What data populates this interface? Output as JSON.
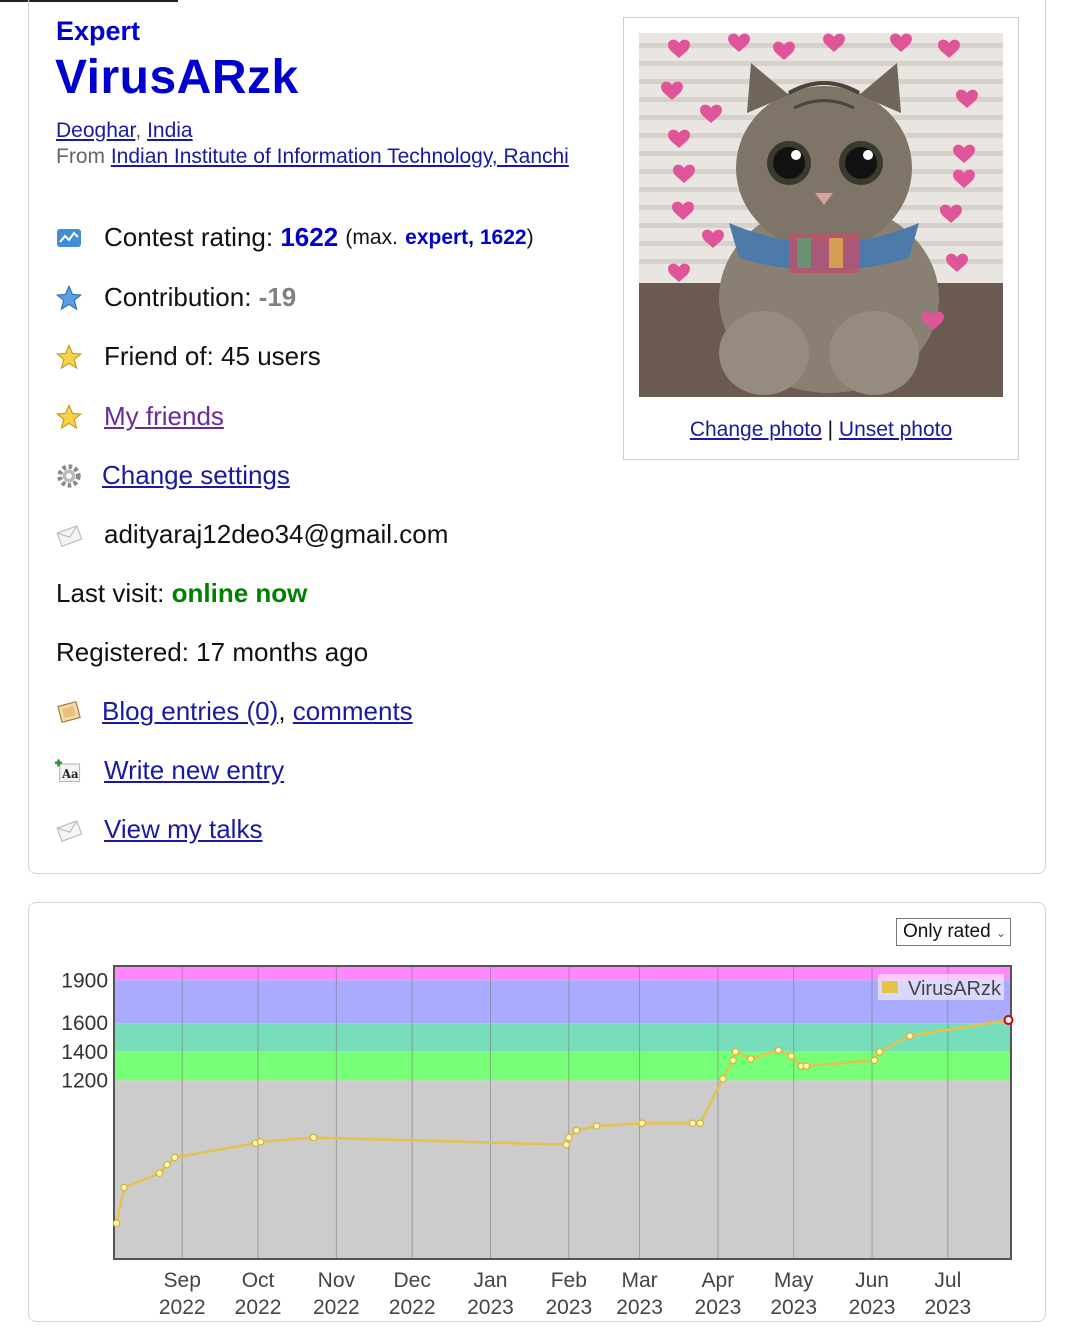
{
  "profile": {
    "rank": "Expert",
    "handle": "VirusARzk",
    "city": "Deoghar",
    "country": "India",
    "from_prefix": "From",
    "organization": "Indian Institute of Information Technology, Ranchi"
  },
  "stats": {
    "contest_rating_label": "Contest rating:",
    "contest_rating_value": "1622",
    "max_open": "(max.",
    "max_rank_value": "expert, 1622",
    "max_close": ")",
    "contribution_label": "Contribution:",
    "contribution_value": "-19",
    "friend_of_label": "Friend of: 45 users",
    "my_friends_link": "My friends",
    "change_settings_link": "Change settings",
    "email": "adityaraj12deo34@gmail.com",
    "last_visit_label": "Last visit:",
    "last_visit_value": "online now",
    "registered_label": "Registered: 17 months ago",
    "blog_entries_link": "Blog entries (0)",
    "comments_link": "comments",
    "write_entry_link": "Write new entry",
    "talks_link": "View my talks"
  },
  "photo": {
    "change_photo": "Change photo",
    "separator": "|",
    "unset_photo": "Unset photo"
  },
  "filter": {
    "selected": "Only rated"
  },
  "chart_data": {
    "type": "line",
    "series": [
      {
        "name": "VirusARzk",
        "color": "#e6c24a",
        "points": [
          [
            "2022-08-06",
            200
          ],
          [
            "2022-08-09",
            450
          ],
          [
            "2022-08-23",
            550
          ],
          [
            "2022-08-26",
            610
          ],
          [
            "2022-08-29",
            660
          ],
          [
            "2022-09-30",
            760
          ],
          [
            "2022-10-02",
            770
          ],
          [
            "2022-10-23",
            800
          ],
          [
            "2023-01-31",
            750
          ],
          [
            "2023-02-01",
            800
          ],
          [
            "2023-02-04",
            850
          ],
          [
            "2023-02-12",
            880
          ],
          [
            "2023-03-02",
            900
          ],
          [
            "2023-03-22",
            900
          ],
          [
            "2023-03-25",
            900
          ],
          [
            "2023-04-03",
            1210
          ],
          [
            "2023-04-07",
            1340
          ],
          [
            "2023-04-08",
            1400
          ],
          [
            "2023-04-14",
            1350
          ],
          [
            "2023-04-25",
            1410
          ],
          [
            "2023-04-30",
            1370
          ],
          [
            "2023-05-04",
            1300
          ],
          [
            "2023-05-06",
            1300
          ],
          [
            "2023-06-02",
            1340
          ],
          [
            "2023-06-04",
            1400
          ],
          [
            "2023-06-16",
            1510
          ],
          [
            "2023-07-25",
            1622
          ]
        ]
      }
    ],
    "x_ticks": [
      {
        "date": "2022-09-01",
        "m": "Sep",
        "y": "2022"
      },
      {
        "date": "2022-10-01",
        "m": "Oct",
        "y": "2022"
      },
      {
        "date": "2022-11-01",
        "m": "Nov",
        "y": "2022"
      },
      {
        "date": "2022-12-01",
        "m": "Dec",
        "y": "2022"
      },
      {
        "date": "2023-01-01",
        "m": "Jan",
        "y": "2023"
      },
      {
        "date": "2023-02-01",
        "m": "Feb",
        "y": "2023"
      },
      {
        "date": "2023-03-01",
        "m": "Mar",
        "y": "2023"
      },
      {
        "date": "2023-04-01",
        "m": "Apr",
        "y": "2023"
      },
      {
        "date": "2023-05-01",
        "m": "May",
        "y": "2023"
      },
      {
        "date": "2023-06-01",
        "m": "Jun",
        "y": "2023"
      },
      {
        "date": "2023-07-01",
        "m": "Jul",
        "y": "2023"
      }
    ],
    "y_ticks": [
      1200,
      1400,
      1600,
      1900
    ],
    "xlim": [
      "2022-08-05",
      "2023-07-26"
    ],
    "ylim": [
      -50,
      2000
    ],
    "bands": [
      {
        "from": 1900,
        "to": 2000,
        "color": "#ff88ff"
      },
      {
        "from": 1600,
        "to": 1900,
        "color": "#aaaaff"
      },
      {
        "from": 1400,
        "to": 1600,
        "color": "#77ddbb"
      },
      {
        "from": 1200,
        "to": 1400,
        "color": "#77ff77"
      },
      {
        "from": -50,
        "to": 1200,
        "color": "#cccccc"
      }
    ],
    "legend_placement": "top-right",
    "grid": true
  }
}
